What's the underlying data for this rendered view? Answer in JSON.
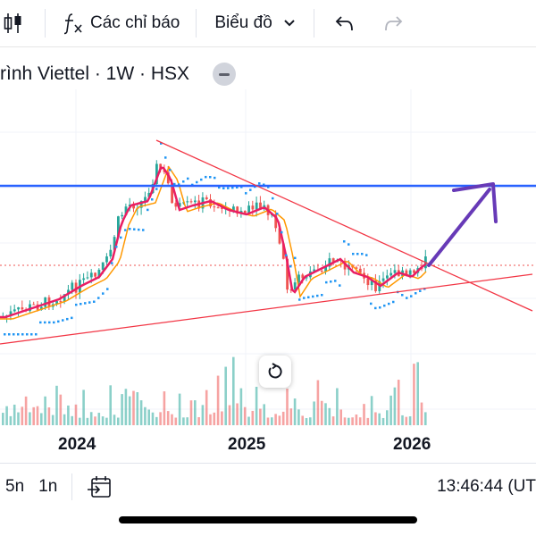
{
  "toolbar": {
    "indicators_label": "Các chỉ báo",
    "chart_type_label": "Biểu đồ"
  },
  "legend": {
    "title": "rình Viettel · 1W · HSX"
  },
  "x_axis": {
    "labels": [
      "2024",
      "2025",
      "2026"
    ]
  },
  "bottom_bar": {
    "ranges": [
      "5n",
      "1n"
    ],
    "clock": "13:46:44 (UT"
  },
  "colors": {
    "up": "#26a69a",
    "down": "#ef5350",
    "horizontal_level": "#2962ff",
    "trendline": "#f23645",
    "arrow": "#673ab7",
    "psar": "#2196f3"
  },
  "icons": {
    "indicators": "fx-icon",
    "chart_type": "chevron-down-icon",
    "undo": "undo-icon",
    "redo": "redo-icon",
    "reset": "reset-icon",
    "goto_date": "calendar-goto-icon",
    "candles": "candles-icon"
  }
}
